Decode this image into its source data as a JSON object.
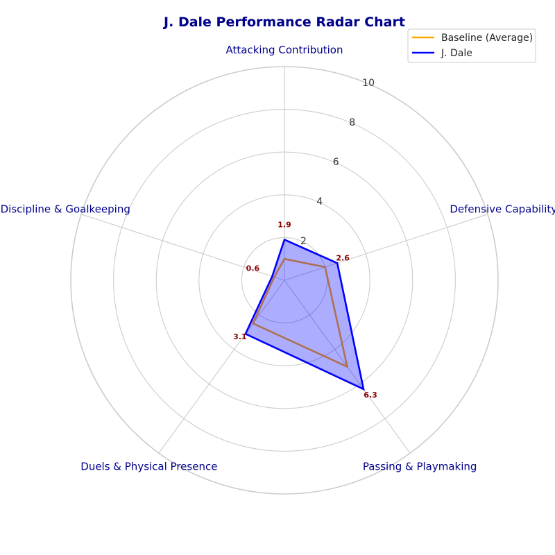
{
  "colors": {
    "title": "#00008B",
    "axis_label": "#00008B",
    "grid": "#cccccc",
    "baseline": "#FFA500",
    "player": "#0000FF",
    "player_fill": "#0000FF",
    "data_label": "#8B0000"
  },
  "chart_data": {
    "type": "radar",
    "title": "J. Dale Performance Radar Chart",
    "axes": [
      "Attacking Contribution",
      "Defensive Capability",
      "Passing & Playmaking",
      "Duels & Physical Presence",
      "Discipline & Goalkeeping"
    ],
    "rlim": [
      0,
      10
    ],
    "rticks": [
      2,
      4,
      6,
      8,
      10
    ],
    "series": [
      {
        "name": "Baseline (Average)",
        "values": [
          1.0,
          2.0,
          5.0,
          2.5,
          0.5
        ]
      },
      {
        "name": "J. Dale",
        "values": [
          1.9,
          2.6,
          6.3,
          3.1,
          0.6
        ],
        "data_labels": [
          "1.9",
          "2.6",
          "6.3",
          "3.1",
          "0.6"
        ]
      }
    ],
    "legend": {
      "placement": "top-right"
    },
    "grid": true
  }
}
